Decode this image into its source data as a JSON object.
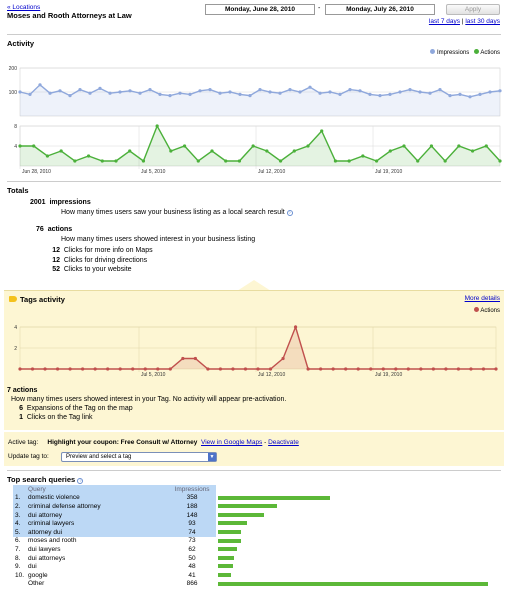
{
  "header": {
    "back_link": "« Locations",
    "business_name": "Moses and Rooth Attorneys at Law",
    "start_date": "Monday, June 28, 2010",
    "date_separator": "-",
    "end_date": "Monday, July 26, 2010",
    "apply_label": "Apply",
    "last7": "last 7 days",
    "separator": "|",
    "last30": "last 30 days"
  },
  "activity": {
    "title": "Activity",
    "legend_impressions": "Impressions",
    "legend_actions": "Actions",
    "impressions_color": "#8fa8dc",
    "actions_color": "#4bb03a"
  },
  "chart_data": [
    {
      "type": "line",
      "name": "impressions-chart",
      "series": [
        {
          "name": "Impressions",
          "values": [
            100,
            90,
            130,
            95,
            105,
            85,
            110,
            95,
            115,
            95,
            100,
            105,
            95,
            110,
            90,
            85,
            95,
            90,
            105,
            110,
            95,
            100,
            90,
            85,
            110,
            100,
            95,
            110,
            100,
            120,
            95,
            100,
            90,
            110,
            105,
            90,
            85,
            90,
            100,
            110,
            100,
            95,
            110,
            85,
            90,
            80,
            90,
            100,
            105
          ]
        }
      ],
      "ylim": [
        0,
        200
      ],
      "yticks": [
        "200",
        "100"
      ]
    },
    {
      "type": "line",
      "name": "actions-chart",
      "series": [
        {
          "name": "Actions",
          "values": [
            4,
            4,
            2,
            3,
            1,
            2,
            1,
            1,
            3,
            1,
            8,
            3,
            4,
            1,
            3,
            1,
            1,
            4,
            3,
            1,
            3,
            4,
            7,
            1,
            1,
            2,
            1,
            3,
            4,
            1,
            4,
            1,
            4,
            3,
            4,
            1
          ]
        }
      ],
      "ylim": [
        0,
        8
      ],
      "yticks": [
        "8",
        "4"
      ],
      "xticks": [
        "Jun 28, 2010",
        "Jul 5, 2010",
        "Jul 12, 2010",
        "Jul 19, 2010"
      ]
    },
    {
      "type": "line",
      "name": "tags-chart",
      "series": [
        {
          "name": "Actions",
          "values": [
            0,
            0,
            0,
            0,
            0,
            0,
            0,
            0,
            0,
            0,
            0,
            0,
            0,
            1,
            1,
            0,
            0,
            0,
            0,
            0,
            0,
            1,
            4,
            0,
            0,
            0,
            0,
            0,
            0,
            0,
            0,
            0,
            0,
            0,
            0,
            0,
            0,
            0,
            0
          ]
        }
      ],
      "ylim": [
        0,
        4
      ],
      "yticks": [
        "4",
        "2"
      ],
      "xticks": [
        "Jul 5, 2010",
        "Jul 12, 2010",
        "Jul 19, 2010"
      ]
    }
  ],
  "totals": {
    "title": "Totals",
    "impressions_count": "2001",
    "impressions_label": "impressions",
    "impressions_desc": "How many times users saw your business listing as a local search result",
    "actions_count": "76",
    "actions_label": "actions",
    "actions_desc": "How many times users showed interest in your business listing",
    "breakdown": [
      {
        "count": "12",
        "label": "Clicks for more info on Maps"
      },
      {
        "count": "12",
        "label": "Clicks for driving directions"
      },
      {
        "count": "52",
        "label": "Clicks to your website"
      }
    ]
  },
  "tags": {
    "title": "Tags activity",
    "more_details": "More details",
    "legend_actions": "Actions",
    "color": "#c0504d",
    "actions_count": "7",
    "actions_label": "actions",
    "actions_desc": "How many times users showed interest in your Tag. No activity will appear pre-activation.",
    "breakdown": [
      {
        "count": "6",
        "label": "Expansions of the Tag on the map"
      },
      {
        "count": "1",
        "label": "Clicks on the Tag link"
      }
    ],
    "active_tag_label": "Active tag:",
    "active_tag_text": "Highlight your coupon: Free Consult w/ Attorney",
    "view_maps": "View in Google Maps",
    "dash": "-",
    "deactivate": "Deactivate",
    "update_label": "Update tag to:",
    "select_value": "Preview and select a tag"
  },
  "queries": {
    "title": "Top search queries",
    "col_query": "Query",
    "col_impressions": "Impressions",
    "max": 866,
    "rows": [
      {
        "rank": "1.",
        "query": "domestic violence",
        "impressions": "358",
        "value": 358
      },
      {
        "rank": "2.",
        "query": "criminal defense attorney",
        "impressions": "188",
        "value": 188
      },
      {
        "rank": "3.",
        "query": "dui attorney",
        "impressions": "148",
        "value": 148
      },
      {
        "rank": "4.",
        "query": "criminal lawyers",
        "impressions": "93",
        "value": 93
      },
      {
        "rank": "5.",
        "query": "attorney dui",
        "impressions": "74",
        "value": 74
      },
      {
        "rank": "6.",
        "query": "moses and rooth",
        "impressions": "73",
        "value": 73
      },
      {
        "rank": "7.",
        "query": "dui lawyers",
        "impressions": "62",
        "value": 62
      },
      {
        "rank": "8.",
        "query": "dui attorneys",
        "impressions": "50",
        "value": 50
      },
      {
        "rank": "9.",
        "query": "dui",
        "impressions": "48",
        "value": 48
      },
      {
        "rank": "10.",
        "query": "google",
        "impressions": "41",
        "value": 41
      },
      {
        "rank": "",
        "query": "Other",
        "impressions": "866",
        "value": 866
      }
    ]
  }
}
